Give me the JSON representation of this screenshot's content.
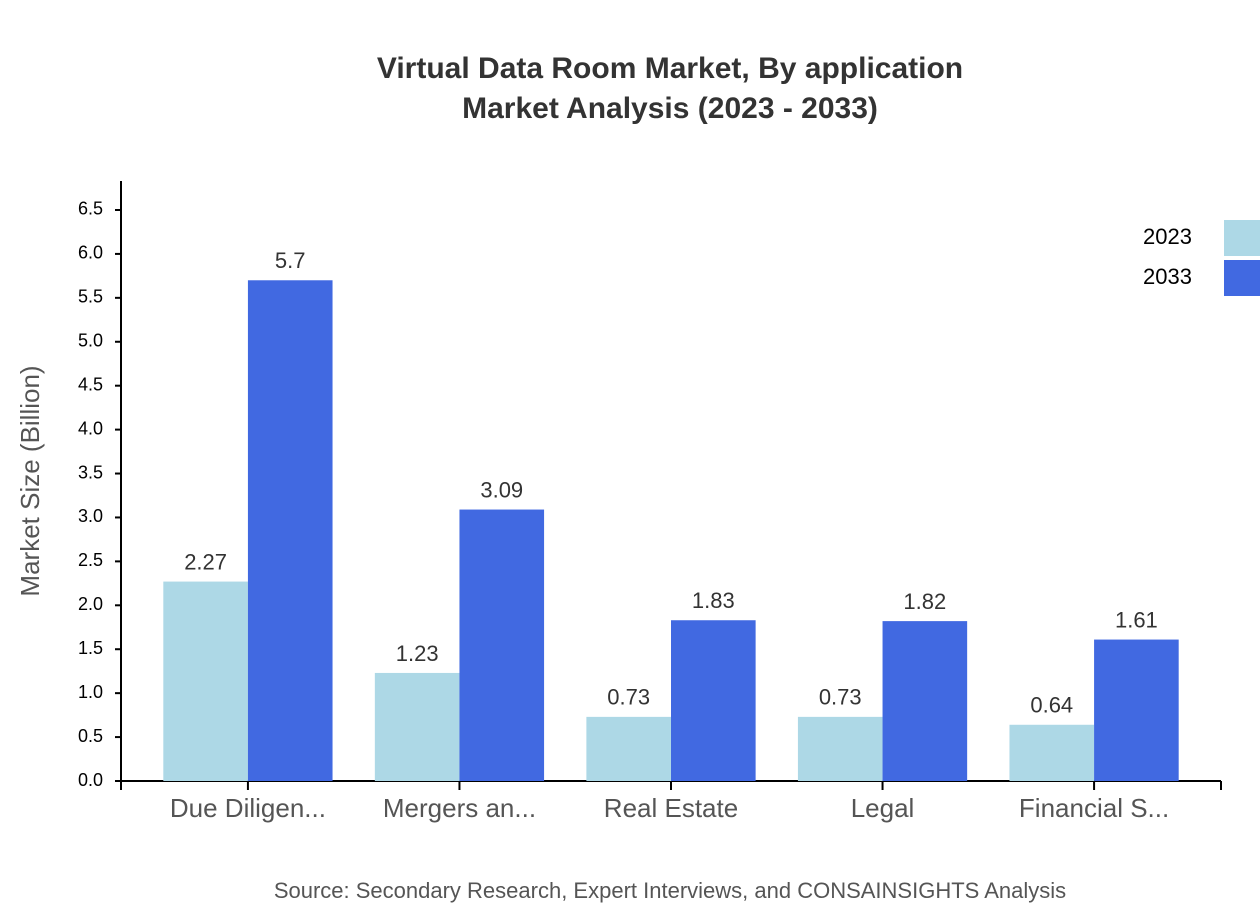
{
  "chart_data": {
    "type": "bar",
    "title": "Virtual Data Room Market, By application",
    "subtitle": "Market Analysis (2023 - 2033)",
    "y_label": "Market Size (Billion)",
    "source": "Source: Secondary Research, Expert Interviews, and CONSAINSIGHTS Analysis",
    "categories": [
      "Due Diligen...",
      "Mergers an...",
      "Real Estate",
      "Legal",
      "Financial S..."
    ],
    "series": [
      {
        "name": "2023",
        "color": "#add8e6",
        "values": [
          2.27,
          1.23,
          0.73,
          0.73,
          0.64
        ]
      },
      {
        "name": "2033",
        "color": "#4169e1",
        "values": [
          5.7,
          3.09,
          1.83,
          1.82,
          1.61
        ]
      }
    ],
    "ylim": [
      0,
      6.83
    ],
    "yticks": [
      {
        "value": 0,
        "label": "0.0"
      },
      0.5,
      {
        "value": 1,
        "label": "1.0"
      },
      1.5,
      {
        "value": 2,
        "label": "2.0"
      },
      2.5,
      {
        "value": 3,
        "label": "3.0"
      },
      3.5,
      {
        "value": 4,
        "label": "4.0"
      },
      4.5,
      {
        "value": 5,
        "label": "5.0"
      },
      5.5,
      {
        "value": 6,
        "label": "6.0"
      },
      6.5
    ],
    "legend": "top-right"
  }
}
